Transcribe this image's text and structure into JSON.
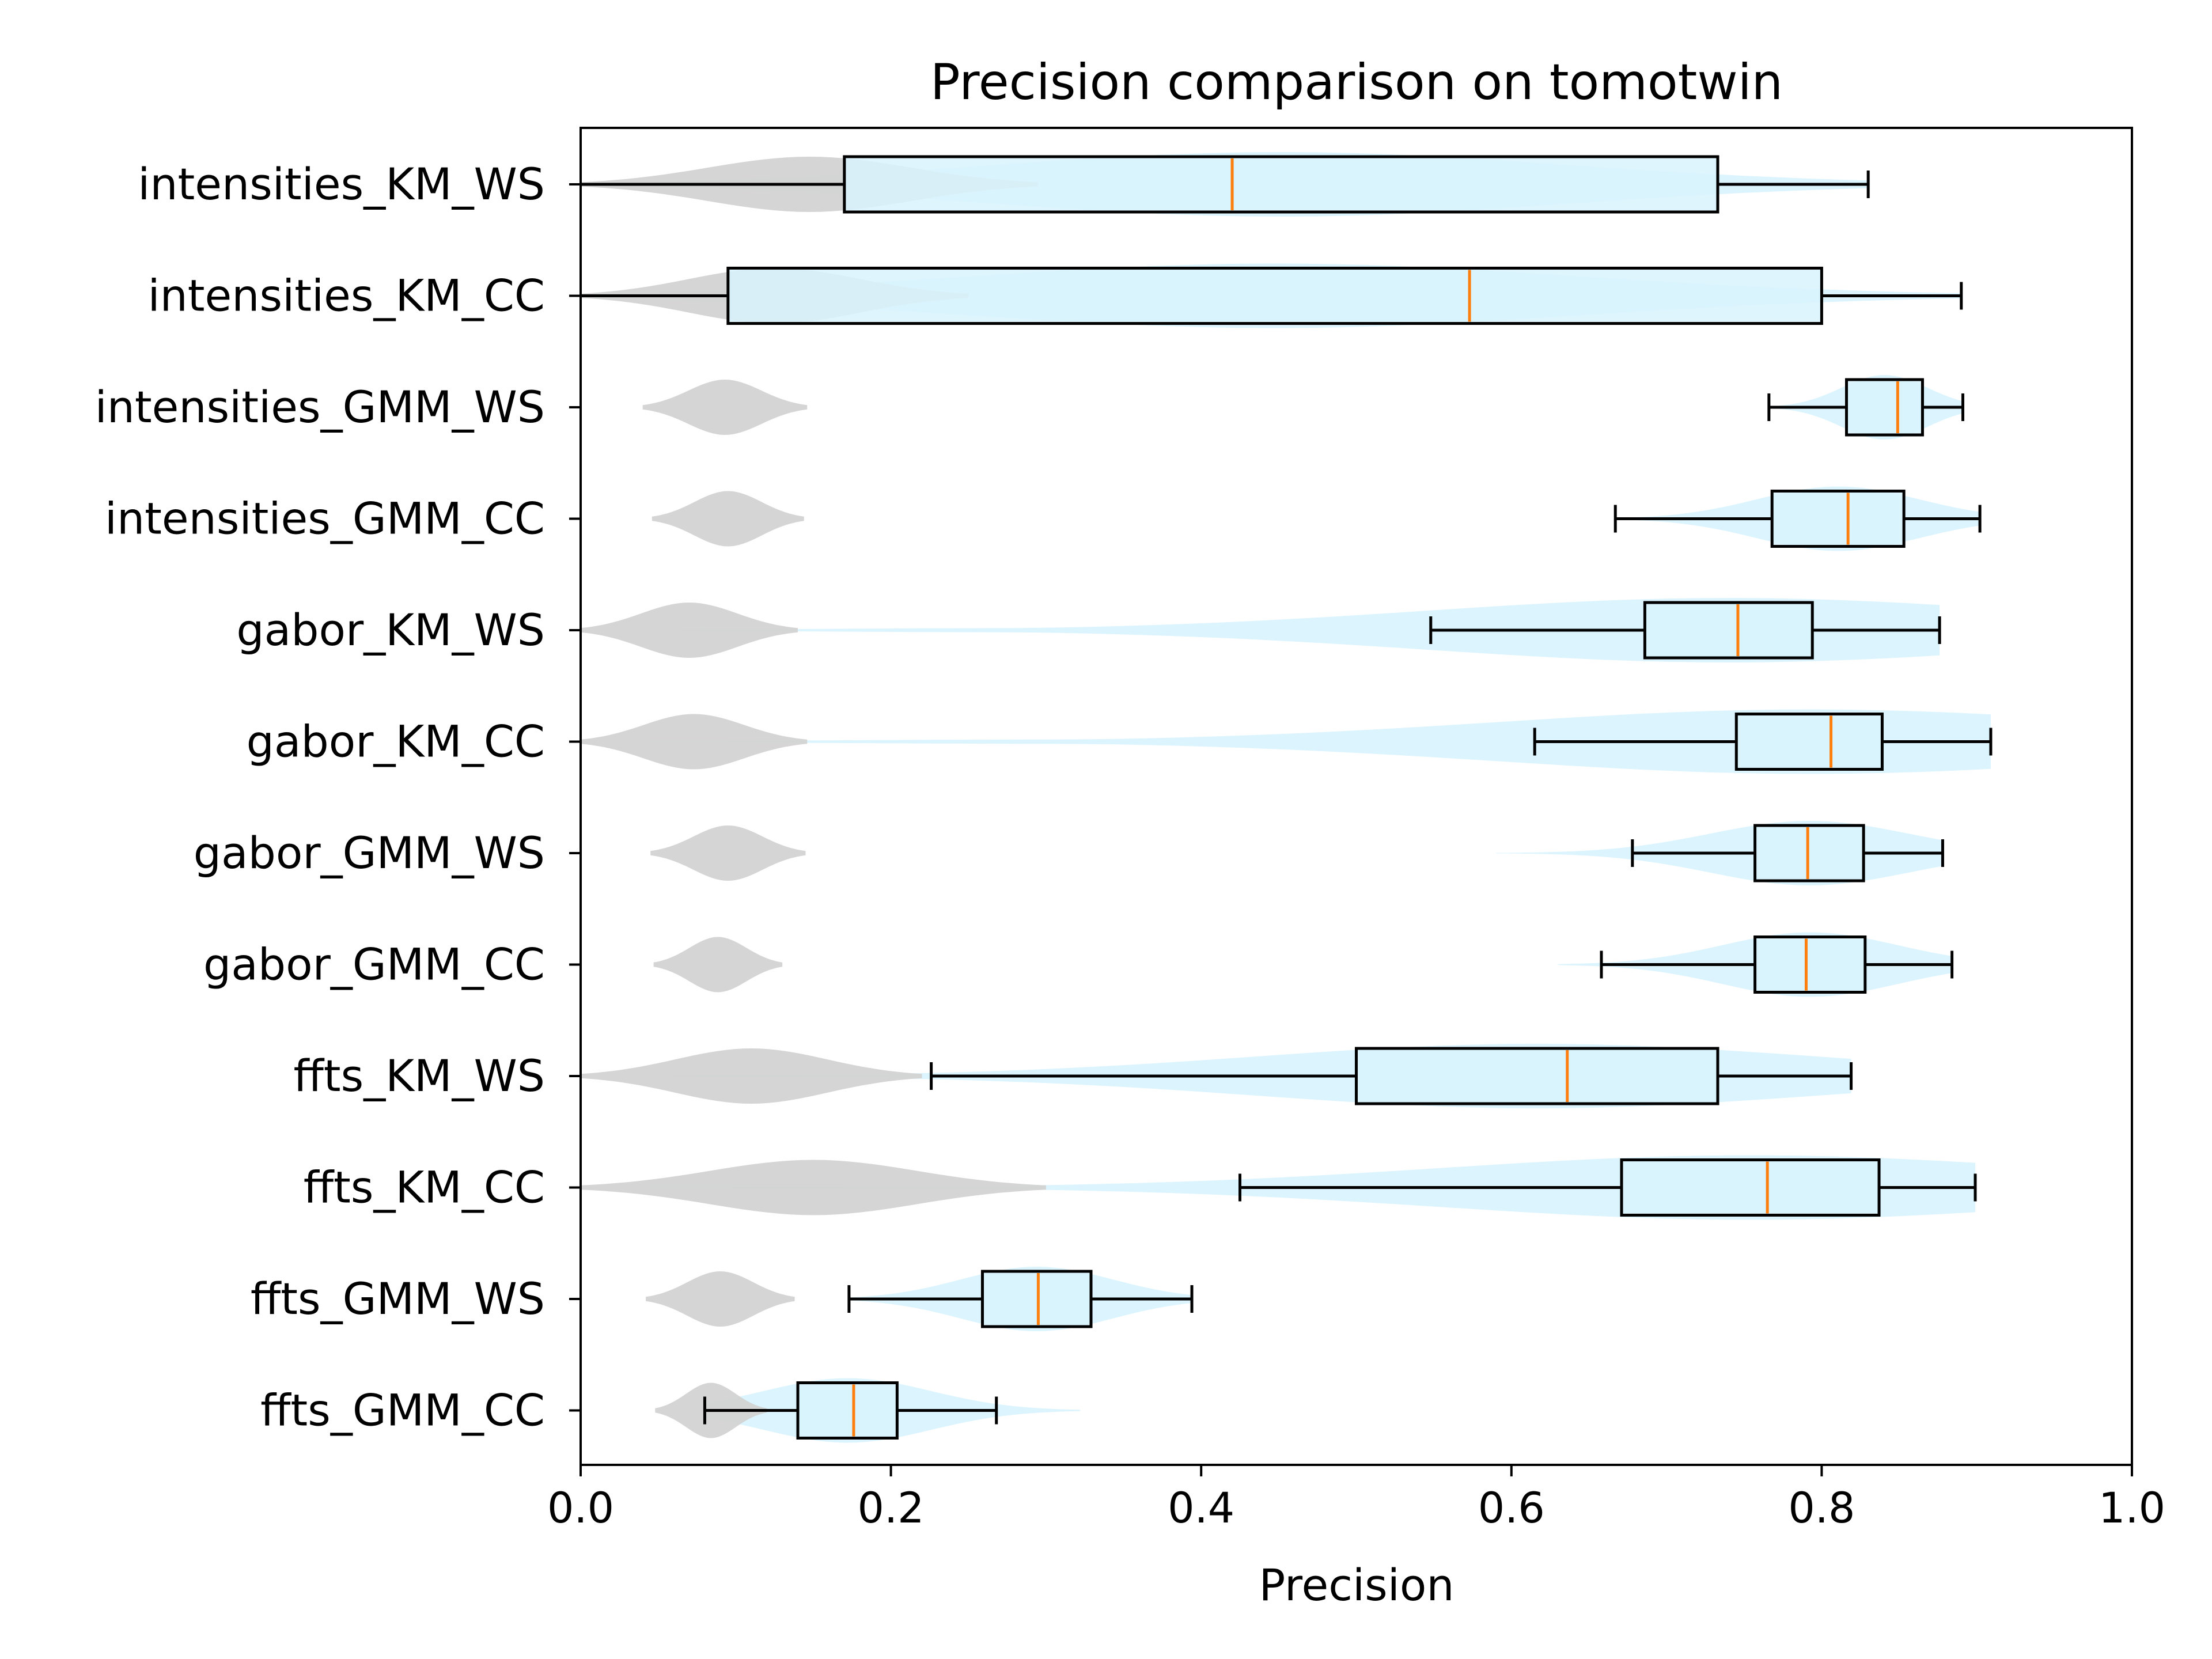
{
  "chart_data": {
    "type": "violin+box",
    "title": "Precision comparison on tomotwin",
    "xlabel": "Precision",
    "ylabel": "",
    "xlim": [
      0.0,
      1.0
    ],
    "xticks": [
      "0.0",
      "0.2",
      "0.4",
      "0.6",
      "0.8",
      "1.0"
    ],
    "xtick_values": [
      0.0,
      0.2,
      0.4,
      0.6,
      0.8,
      1.0
    ],
    "grid": false,
    "legend": "none",
    "colors": {
      "box_fill": "#d9f3fd",
      "violin_fill": "#d9f3fd",
      "baseline_violin": "#d3d3d3",
      "median": "#ff7f0e",
      "edge": "#000000"
    },
    "categories": [
      "intensities_KM_WS",
      "intensities_KM_CC",
      "intensities_GMM_WS",
      "intensities_GMM_CC",
      "gabor_KM_WS",
      "gabor_KM_CC",
      "gabor_GMM_WS",
      "gabor_GMM_CC",
      "ffts_KM_WS",
      "ffts_KM_CC",
      "ffts_GMM_WS",
      "ffts_GMM_CC"
    ],
    "boxes": [
      {
        "whislo": 0.0,
        "q1": 0.17,
        "median": 0.42,
        "q3": 0.733,
        "whishi": 0.83,
        "vmin": 0.0,
        "vmax": 0.83
      },
      {
        "whislo": 0.0,
        "q1": 0.095,
        "median": 0.573,
        "q3": 0.8,
        "whishi": 0.89,
        "vmin": 0.0,
        "vmax": 0.89
      },
      {
        "whislo": 0.766,
        "q1": 0.816,
        "median": 0.849,
        "q3": 0.865,
        "whishi": 0.891,
        "vmin": 0.766,
        "vmax": 0.891
      },
      {
        "whislo": 0.667,
        "q1": 0.768,
        "median": 0.817,
        "q3": 0.853,
        "whishi": 0.902,
        "vmin": 0.667,
        "vmax": 0.902
      },
      {
        "whislo": 0.548,
        "q1": 0.686,
        "median": 0.746,
        "q3": 0.794,
        "whishi": 0.876,
        "vmin": 0.0,
        "vmax": 0.876
      },
      {
        "whislo": 0.615,
        "q1": 0.745,
        "median": 0.806,
        "q3": 0.839,
        "whishi": 0.909,
        "vmin": 0.0,
        "vmax": 0.909
      },
      {
        "whislo": 0.678,
        "q1": 0.757,
        "median": 0.791,
        "q3": 0.827,
        "whishi": 0.878,
        "vmin": 0.59,
        "vmax": 0.878
      },
      {
        "whislo": 0.658,
        "q1": 0.757,
        "median": 0.79,
        "q3": 0.828,
        "whishi": 0.884,
        "vmin": 0.63,
        "vmax": 0.884
      },
      {
        "whislo": 0.226,
        "q1": 0.5,
        "median": 0.636,
        "q3": 0.733,
        "whishi": 0.819,
        "vmin": 0.0,
        "vmax": 0.819
      },
      {
        "whislo": 0.425,
        "q1": 0.671,
        "median": 0.765,
        "q3": 0.837,
        "whishi": 0.899,
        "vmin": 0.0,
        "vmax": 0.899
      },
      {
        "whislo": 0.173,
        "q1": 0.259,
        "median": 0.295,
        "q3": 0.329,
        "whishi": 0.394,
        "vmin": 0.173,
        "vmax": 0.394
      },
      {
        "whislo": 0.08,
        "q1": 0.14,
        "median": 0.176,
        "q3": 0.204,
        "whishi": 0.268,
        "vmin": 0.08,
        "vmax": 0.322
      }
    ],
    "baseline_violins": [
      {
        "vmin": 0.0,
        "vmax": 0.295
      },
      {
        "vmin": 0.0,
        "vmax": 0.25
      },
      {
        "vmin": 0.04,
        "vmax": 0.146
      },
      {
        "vmin": 0.046,
        "vmax": 0.144
      },
      {
        "vmin": 0.0,
        "vmax": 0.14
      },
      {
        "vmin": 0.0,
        "vmax": 0.146
      },
      {
        "vmin": 0.045,
        "vmax": 0.145
      },
      {
        "vmin": 0.047,
        "vmax": 0.13
      },
      {
        "vmin": 0.0,
        "vmax": 0.22
      },
      {
        "vmin": 0.0,
        "vmax": 0.3
      },
      {
        "vmin": 0.042,
        "vmax": 0.138
      },
      {
        "vmin": 0.048,
        "vmax": 0.12
      }
    ]
  }
}
